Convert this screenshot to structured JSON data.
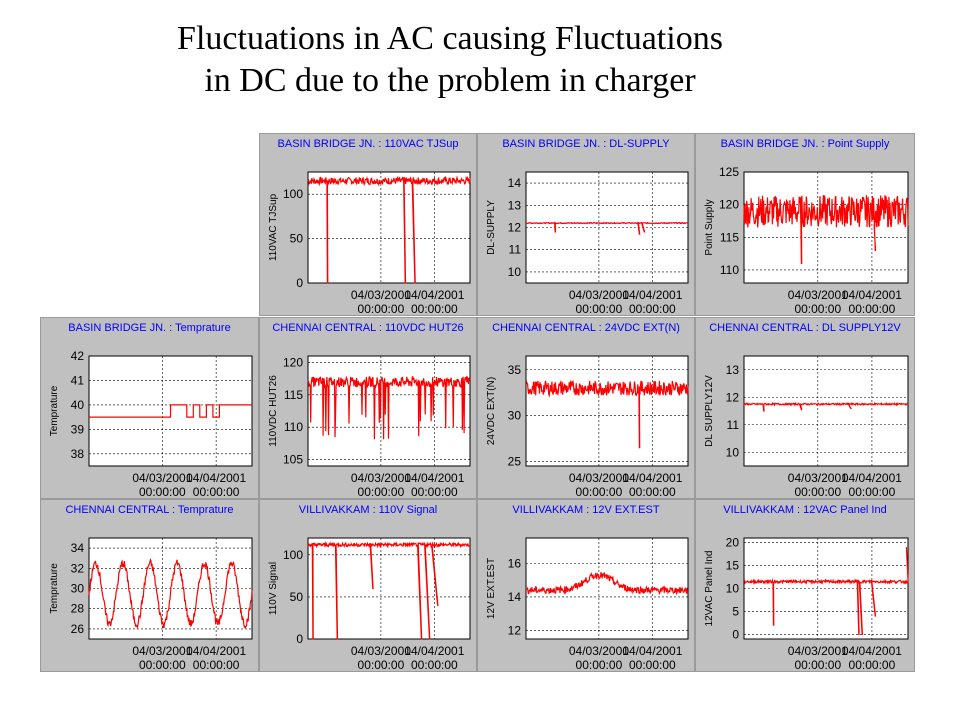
{
  "slide": {
    "title_line1": "Fluctuations in AC causing Fluctuations",
    "title_line2": "in DC due to the problem in charger"
  },
  "colors": {
    "series": "#ff0000",
    "panel_bg": "#c0c0c0",
    "plot_bg": "#ffffff",
    "title_text": "#0000ff"
  },
  "chart_data": [
    {
      "id": "p1",
      "type": "line",
      "title": "BASIN BRIDGE JN. : 110VAC TJSup",
      "ylabel": "110VAC TJSup",
      "ylim": [
        0,
        125
      ],
      "yticks": [
        0,
        50,
        100
      ],
      "xticks": [
        "04/03/2001",
        "04/04/2001"
      ],
      "grid": true,
      "base": 115,
      "noise": 4,
      "dips": [
        {
          "pos": 0.12,
          "to": 0
        },
        {
          "pos": 0.6,
          "to": 0
        },
        {
          "pos": 0.66,
          "to": 0
        }
      ]
    },
    {
      "id": "p2",
      "type": "line",
      "title": "BASIN BRIDGE JN. : DL-SUPPLY",
      "ylabel": "DL-SUPPLY",
      "ylim": [
        9.5,
        14.5
      ],
      "yticks": [
        10,
        11,
        12,
        13,
        14
      ],
      "xticks": [
        "04/03/2001",
        "04/04/2001"
      ],
      "grid": true,
      "base": 12.2,
      "noise": 0.02,
      "dips": [
        {
          "pos": 0.18,
          "to": 11.8
        },
        {
          "pos": 0.7,
          "to": 11.7
        },
        {
          "pos": 0.73,
          "to": 11.8
        }
      ]
    },
    {
      "id": "p3",
      "type": "line",
      "title": "BASIN BRIDGE JN. : Point Supply",
      "ylabel": "Point Supply",
      "ylim": [
        108,
        125
      ],
      "yticks": [
        110,
        115,
        120,
        125
      ],
      "xticks": [
        "04/03/2001",
        "04/04/2001"
      ],
      "grid": true,
      "base": 119,
      "noise": 2.5,
      "dips": [
        {
          "pos": 0.35,
          "to": 111
        },
        {
          "pos": 0.8,
          "to": 113
        }
      ]
    },
    {
      "id": "p4",
      "type": "line",
      "title": "BASIN BRIDGE JN. : Temprature",
      "ylabel": "Temprature",
      "ylim": [
        37.5,
        42
      ],
      "yticks": [
        38,
        39,
        40,
        41,
        42
      ],
      "xticks": [
        "04/03/2001",
        "04/04/2001"
      ],
      "grid": true,
      "steps": [
        [
          0,
          39.5
        ],
        [
          0.5,
          40
        ],
        [
          0.6,
          39.5
        ],
        [
          0.64,
          40
        ],
        [
          0.68,
          39.5
        ],
        [
          0.72,
          40
        ],
        [
          0.76,
          39.5
        ],
        [
          0.8,
          40
        ],
        [
          0.88,
          40
        ],
        [
          1,
          40
        ]
      ]
    },
    {
      "id": "p5",
      "type": "line",
      "title": "CHENNAI CENTRAL : 110VDC HUT26",
      "ylabel": "110VDC HUT26",
      "ylim": [
        104,
        121
      ],
      "yticks": [
        105,
        110,
        115,
        120
      ],
      "xticks": [
        "04/03/2001",
        "04/04/2001"
      ],
      "grid": true,
      "base": 117,
      "noise": 0.8,
      "spikes": 6,
      "spikeTo": 108
    },
    {
      "id": "p6",
      "type": "line",
      "title": "CHENNAI CENTRAL : 24VDC EXT(N)",
      "ylabel": "24VDC EXT(N)",
      "ylim": [
        24.5,
        36.5
      ],
      "yticks": [
        25,
        30,
        35
      ],
      "xticks": [
        "04/03/2001",
        "04/04/2001"
      ],
      "grid": true,
      "base": 33,
      "noise": 0.8,
      "dips": [
        {
          "pos": 0.7,
          "to": 26.5
        }
      ]
    },
    {
      "id": "p7",
      "type": "line",
      "title": "CHENNAI CENTRAL : DL SUPPLY12V",
      "ylabel": "DL SUPPLY12V",
      "ylim": [
        9.5,
        13.5
      ],
      "yticks": [
        10,
        11,
        12,
        13
      ],
      "xticks": [
        "04/03/2001",
        "04/04/2001"
      ],
      "grid": true,
      "base": 11.75,
      "noise": 0.03,
      "dips": [
        {
          "pos": 0.12,
          "to": 11.5
        },
        {
          "pos": 0.35,
          "to": 11.55
        },
        {
          "pos": 0.65,
          "to": 11.6
        }
      ]
    },
    {
      "id": "p8",
      "type": "line",
      "title": "CHENNAI CENTRAL : Temprature",
      "ylabel": "Temprature",
      "ylim": [
        25,
        35
      ],
      "yticks": [
        26,
        28,
        30,
        32,
        34
      ],
      "xticks": [
        "04/03/2001",
        "04/04/2001"
      ],
      "grid": true,
      "base": 29.5,
      "noise": 0.4,
      "wave": {
        "amp": 3,
        "cycles": 6
      }
    },
    {
      "id": "p9",
      "type": "line",
      "title": "VILLIVAKKAM : 110V Signal",
      "ylabel": "110V Signal",
      "ylim": [
        0,
        120
      ],
      "yticks": [
        0,
        50,
        100
      ],
      "xticks": [
        "04/03/2001",
        "04/04/2001"
      ],
      "grid": true,
      "base": 112,
      "noise": 2,
      "dips": [
        {
          "pos": 0.03,
          "to": 0
        },
        {
          "pos": 0.18,
          "to": 0
        },
        {
          "pos": 0.4,
          "to": 60
        },
        {
          "pos": 0.7,
          "to": 0
        },
        {
          "pos": 0.75,
          "to": 0
        },
        {
          "pos": 0.8,
          "to": 40
        }
      ]
    },
    {
      "id": "p10",
      "type": "line",
      "title": "VILLIVAKKAM : 12V EXT.EST",
      "ylabel": "12V EXT.EST",
      "ylim": [
        11.5,
        17.5
      ],
      "yticks": [
        12,
        14,
        16
      ],
      "xticks": [
        "04/03/2001",
        "04/04/2001"
      ],
      "grid": true,
      "base": 14.4,
      "noise": 0.2,
      "hump": {
        "pos": 0.45,
        "amp": 0.9
      }
    },
    {
      "id": "p11",
      "type": "line",
      "title": "VILLIVAKKAM : 12VAC Panel Ind",
      "ylabel": "12VAC Panel Ind",
      "ylim": [
        -1,
        21
      ],
      "yticks": [
        0,
        5,
        10,
        15,
        20
      ],
      "xticks": [
        "04/03/2001",
        "04/04/2001"
      ],
      "grid": true,
      "base": 11.5,
      "noise": 0.3,
      "dips": [
        {
          "pos": 0.18,
          "to": 2
        },
        {
          "pos": 0.7,
          "to": 0
        },
        {
          "pos": 0.72,
          "to": 0
        },
        {
          "pos": 0.8,
          "to": 4
        }
      ],
      "spikeUp": {
        "pos": 0.99,
        "to": 19
      }
    }
  ]
}
